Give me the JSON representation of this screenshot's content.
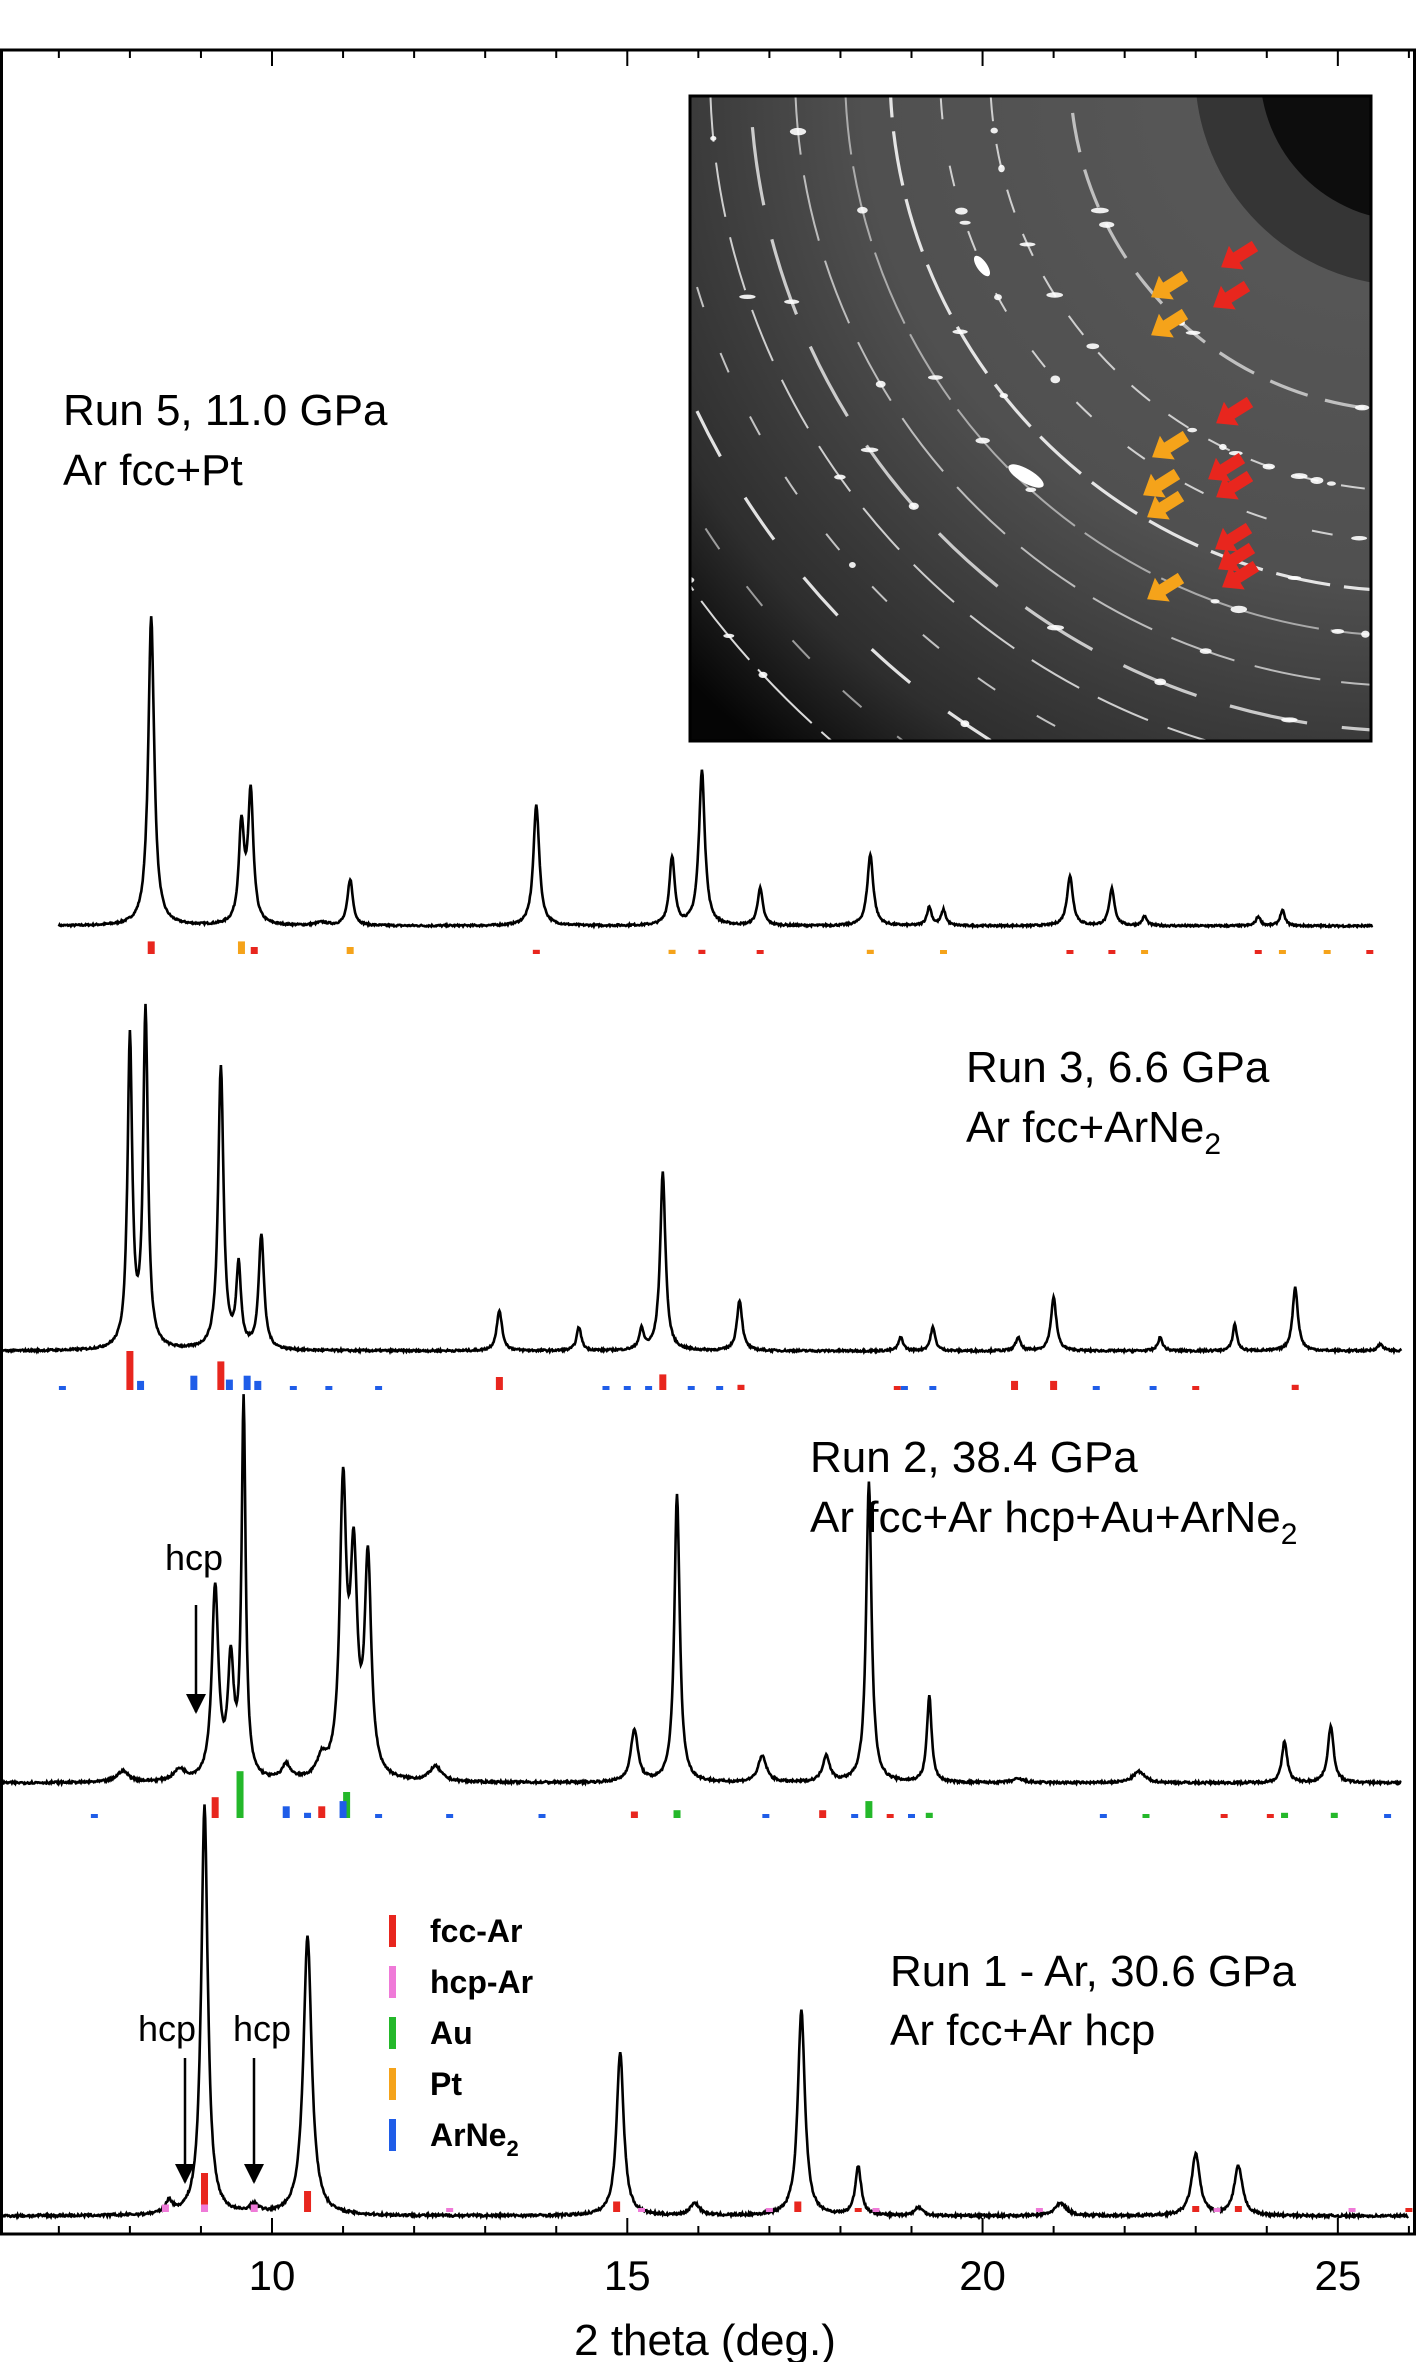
{
  "chart_data": {
    "type": "line",
    "xlabel": "2 theta (deg.)",
    "xlim": [
      6.2,
      26.1
    ],
    "x_ticks": [
      10,
      15,
      20,
      25
    ],
    "ylabel": "",
    "grid": false,
    "legend": {
      "placement": "lower-left inside bottom panel",
      "entries": [
        {
          "key": "fcc",
          "name": "fcc-Ar",
          "color": "#e8261e"
        },
        {
          "key": "hcp",
          "name": "hcp-Ar",
          "color": "#ef7ad8"
        },
        {
          "key": "au",
          "name": "Au",
          "color": "#24b82a"
        },
        {
          "key": "pt",
          "name": "Pt",
          "color": "#f5a31a"
        },
        {
          "key": "arne",
          "name": "ArNe",
          "sub": "2",
          "color": "#1f5de8"
        }
      ]
    },
    "runs": [
      {
        "id": "run5",
        "label_line1": "Run 5, 11.0 GPa",
        "label_line2": "Ar fcc+Pt",
        "label_line2_sub": "",
        "label_line2_tail": "",
        "x_start": 7.0,
        "x_end": 25.5,
        "baseline": 0.0,
        "peaks": [
          [
            8.3,
            1.0,
            0.05
          ],
          [
            9.57,
            0.31,
            0.045
          ],
          [
            9.7,
            0.42,
            0.045
          ],
          [
            10.7,
            0.01,
            0.1
          ],
          [
            11.1,
            0.15,
            0.045
          ],
          [
            13.72,
            0.39,
            0.05
          ],
          [
            15.63,
            0.22,
            0.045
          ],
          [
            16.05,
            0.5,
            0.05
          ],
          [
            16.87,
            0.12,
            0.045
          ],
          [
            18.42,
            0.23,
            0.05
          ],
          [
            19.25,
            0.06,
            0.04
          ],
          [
            19.45,
            0.05,
            0.04
          ],
          [
            21.23,
            0.16,
            0.05
          ],
          [
            21.82,
            0.12,
            0.045
          ],
          [
            22.28,
            0.03,
            0.04
          ],
          [
            23.88,
            0.03,
            0.04
          ],
          [
            24.22,
            0.05,
            0.04
          ]
        ],
        "ticks": {
          "fcc": [
            [
              8.3,
              0.09
            ],
            [
              9.75,
              0.05
            ],
            [
              13.72,
              0.03
            ],
            [
              16.05,
              0.03
            ],
            [
              16.87,
              0.015
            ],
            [
              21.23,
              0.02
            ],
            [
              21.82,
              0.02
            ],
            [
              23.88,
              0.01
            ],
            [
              25.45,
              0.01
            ]
          ],
          "pt": [
            [
              9.57,
              0.09
            ],
            [
              11.1,
              0.05
            ],
            [
              15.63,
              0.03
            ],
            [
              18.42,
              0.03
            ],
            [
              19.45,
              0.01
            ],
            [
              22.28,
              0.01
            ],
            [
              24.22,
              0.02
            ],
            [
              24.85,
              0.01
            ]
          ],
          "arne": [],
          "au": [],
          "hcp": []
        }
      },
      {
        "id": "run3",
        "label_line1": "Run 3, 6.6 GPa",
        "label_line2": "Ar fcc+ArNe",
        "label_line2_sub": "2",
        "label_line2_tail": "",
        "x_start": 6.2,
        "x_end": 25.9,
        "baseline": 0.0,
        "peaks": [
          [
            8.0,
            0.92,
            0.04
          ],
          [
            8.22,
            1.0,
            0.04
          ],
          [
            9.28,
            0.84,
            0.045
          ],
          [
            9.53,
            0.24,
            0.04
          ],
          [
            9.85,
            0.34,
            0.045
          ],
          [
            13.2,
            0.12,
            0.045
          ],
          [
            14.32,
            0.07,
            0.04
          ],
          [
            15.2,
            0.06,
            0.04
          ],
          [
            15.5,
            0.53,
            0.045
          ],
          [
            16.58,
            0.15,
            0.045
          ],
          [
            18.85,
            0.04,
            0.04
          ],
          [
            19.3,
            0.07,
            0.04
          ],
          [
            20.5,
            0.04,
            0.04
          ],
          [
            21.0,
            0.16,
            0.045
          ],
          [
            22.5,
            0.04,
            0.04
          ],
          [
            23.55,
            0.08,
            0.035
          ],
          [
            24.4,
            0.19,
            0.045
          ],
          [
            25.6,
            0.02,
            0.05
          ]
        ],
        "ticks": {
          "fcc": [
            [
              8.0,
              0.3
            ],
            [
              9.28,
              0.22
            ],
            [
              13.2,
              0.1
            ],
            [
              15.5,
              0.12
            ],
            [
              16.6,
              0.04
            ],
            [
              18.8,
              0.02
            ],
            [
              20.45,
              0.07
            ],
            [
              21.0,
              0.07
            ],
            [
              23.0,
              0.03
            ],
            [
              24.4,
              0.04
            ]
          ],
          "arne": [
            [
              7.05,
              0.01
            ],
            [
              8.15,
              0.07
            ],
            [
              8.9,
              0.11
            ],
            [
              9.4,
              0.08
            ],
            [
              9.65,
              0.11
            ],
            [
              9.8,
              0.07
            ],
            [
              10.3,
              0.02
            ],
            [
              10.8,
              0.015
            ],
            [
              11.5,
              0.01
            ],
            [
              14.7,
              0.03
            ],
            [
              15.0,
              0.02
            ],
            [
              15.3,
              0.03
            ],
            [
              15.9,
              0.03
            ],
            [
              16.3,
              0.02
            ],
            [
              18.9,
              0.02
            ],
            [
              19.3,
              0.03
            ],
            [
              21.6,
              0.015
            ],
            [
              22.4,
              0.015
            ]
          ],
          "pt": [],
          "au": [],
          "hcp": []
        }
      },
      {
        "id": "run2",
        "label_line1": "Run 2, 38.4 GPa",
        "label_line2": "Ar fcc+Ar hcp+Au+ArNe",
        "label_line2_sub": "2",
        "label_line2_tail": "",
        "x_start": 6.2,
        "x_end": 25.9,
        "baseline": 0.0,
        "peaks": [
          [
            7.9,
            0.03,
            0.1
          ],
          [
            8.7,
            0.03,
            0.1
          ],
          [
            9.2,
            0.51,
            0.055
          ],
          [
            9.42,
            0.3,
            0.05
          ],
          [
            9.6,
            1.0,
            0.035
          ],
          [
            10.2,
            0.04,
            0.07
          ],
          [
            10.7,
            0.05,
            0.08
          ],
          [
            11.0,
            0.75,
            0.055
          ],
          [
            11.15,
            0.55,
            0.06
          ],
          [
            11.35,
            0.57,
            0.055
          ],
          [
            12.3,
            0.04,
            0.1
          ],
          [
            15.1,
            0.14,
            0.06
          ],
          [
            15.7,
            0.77,
            0.045
          ],
          [
            16.9,
            0.07,
            0.07
          ],
          [
            17.8,
            0.07,
            0.06
          ],
          [
            18.4,
            0.8,
            0.045
          ],
          [
            19.25,
            0.23,
            0.04
          ],
          [
            20.5,
            0.01,
            0.1
          ],
          [
            22.2,
            0.03,
            0.1
          ],
          [
            24.25,
            0.11,
            0.045
          ],
          [
            24.9,
            0.15,
            0.05
          ]
        ],
        "ticks": {
          "fcc": [
            [
              9.2,
              0.16
            ],
            [
              10.7,
              0.09
            ],
            [
              15.1,
              0.05
            ],
            [
              17.75,
              0.06
            ],
            [
              18.7,
              0.02
            ],
            [
              23.4,
              0.03
            ],
            [
              24.05,
              0.03
            ]
          ],
          "au": [
            [
              9.55,
              0.36
            ],
            [
              11.05,
              0.2
            ],
            [
              15.7,
              0.06
            ],
            [
              18.4,
              0.13
            ],
            [
              19.25,
              0.04
            ],
            [
              22.3,
              0.02
            ],
            [
              24.25,
              0.04
            ],
            [
              24.95,
              0.04
            ]
          ],
          "arne": [
            [
              7.5,
              0.01
            ],
            [
              10.2,
              0.09
            ],
            [
              10.5,
              0.04
            ],
            [
              11.0,
              0.13
            ],
            [
              11.5,
              0.02
            ],
            [
              12.5,
              0.01
            ],
            [
              13.8,
              0.01
            ],
            [
              16.95,
              0.03
            ],
            [
              18.2,
              0.02
            ],
            [
              19.0,
              0.02
            ],
            [
              21.7,
              0.01
            ],
            [
              25.7,
              0.01
            ]
          ],
          "pt": [],
          "hcp": []
        }
      },
      {
        "id": "run1",
        "label_line1": "Run 1 - Ar, 30.6 GPa",
        "label_line2": "Ar fcc+Ar hcp",
        "label_line2_sub": "",
        "label_line2_tail": "",
        "x_start": 6.2,
        "x_end": 26.0,
        "baseline": 0.0,
        "peaks": [
          [
            8.55,
            0.03,
            0.06
          ],
          [
            9.05,
            1.0,
            0.055
          ],
          [
            9.75,
            0.02,
            0.08
          ],
          [
            10.5,
            0.68,
            0.07
          ],
          [
            14.9,
            0.4,
            0.06
          ],
          [
            15.95,
            0.03,
            0.08
          ],
          [
            17.45,
            0.5,
            0.06
          ],
          [
            18.25,
            0.12,
            0.05
          ],
          [
            19.1,
            0.02,
            0.07
          ],
          [
            21.1,
            0.03,
            0.1
          ],
          [
            23.0,
            0.15,
            0.07
          ],
          [
            23.6,
            0.12,
            0.07
          ]
        ],
        "ticks": {
          "fcc": [
            [
              9.05,
              0.26
            ],
            [
              10.5,
              0.14
            ],
            [
              14.85,
              0.07
            ],
            [
              17.4,
              0.07
            ],
            [
              18.25,
              0.02
            ],
            [
              23.0,
              0.04
            ],
            [
              23.6,
              0.04
            ],
            [
              26.0,
              0.01
            ]
          ],
          "hcp": [
            [
              8.5,
              0.05
            ],
            [
              9.05,
              0.05
            ],
            [
              9.75,
              0.05
            ],
            [
              12.5,
              0.01
            ],
            [
              15.2,
              0.01
            ],
            [
              17.0,
              0.01
            ],
            [
              18.5,
              0.01
            ],
            [
              20.8,
              0.01
            ],
            [
              23.3,
              0.01
            ],
            [
              25.2,
              0.01
            ]
          ],
          "au": [],
          "pt": [],
          "arne": []
        }
      }
    ],
    "annotations": [
      {
        "id": "run2-hcp",
        "text": "hcp",
        "run": "run2",
        "x": 8.6
      },
      {
        "id": "run1-hcp-a",
        "text": "hcp",
        "run": "run1",
        "x": 8.5
      },
      {
        "id": "run1-hcp-b",
        "text": "hcp",
        "run": "run1",
        "x": 9.7
      }
    ]
  }
}
